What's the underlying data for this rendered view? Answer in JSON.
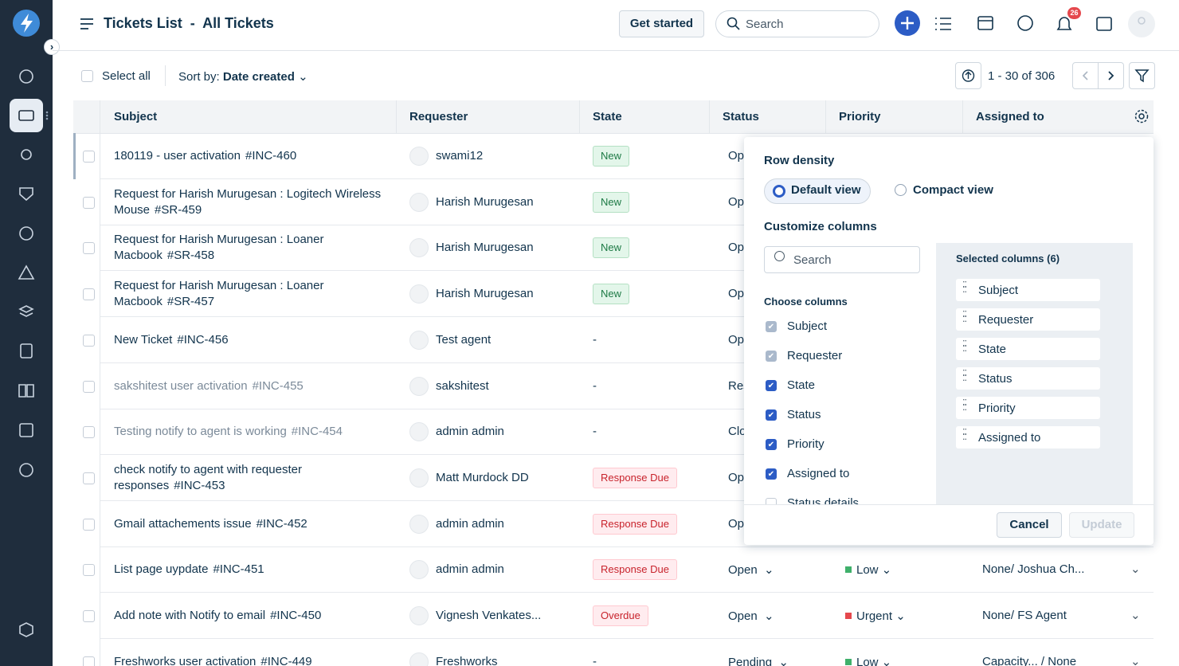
{
  "header": {
    "title": "Tickets List",
    "separator": "-",
    "view": "All Tickets",
    "get_started": "Get started",
    "search_placeholder": "Search",
    "notification_count": 26
  },
  "toolbar": {
    "select_all": "Select all",
    "sort_label": "Sort by:",
    "sort_value": "Date created",
    "pagination": "1 - 30 of 306"
  },
  "table": {
    "columns": [
      "Subject",
      "Requester",
      "State",
      "Status",
      "Priority",
      "Assigned to"
    ],
    "rows": [
      {
        "subject": "180119 - user activation",
        "id": "#INC-460",
        "requester": "swami12",
        "state": "New",
        "state_color": "green",
        "status": "Op"
      },
      {
        "subject": "Request for Harish Murugesan : Logitech Wireless Mouse",
        "id": "#SR-459",
        "requester": "Harish Murugesan",
        "state": "New",
        "state_color": "green",
        "status": "Op"
      },
      {
        "subject": "Request for Harish Murugesan : Loaner Macbook",
        "id": "#SR-458",
        "requester": "Harish Murugesan",
        "state": "New",
        "state_color": "green",
        "status": "Op"
      },
      {
        "subject": "Request for Harish Murugesan : Loaner Macbook",
        "id": "#SR-457",
        "requester": "Harish Murugesan",
        "state": "New",
        "state_color": "green",
        "status": "Op"
      },
      {
        "subject": "New Ticket",
        "id": "#INC-456",
        "requester": "Test agent",
        "state": "-",
        "status": "Op"
      },
      {
        "subject": "sakshitest user activation",
        "id": "#INC-455",
        "requester": "sakshitest",
        "state": "-",
        "status": "Res",
        "muted": true
      },
      {
        "subject": "Testing notify to agent is working",
        "id": "#INC-454",
        "requester": "admin admin",
        "state": "-",
        "status": "Clo",
        "muted": true
      },
      {
        "subject": "check notify to agent with requester responses",
        "id": "#INC-453",
        "requester": "Matt Murdock DD",
        "state": "Response Due",
        "state_color": "red",
        "status": "Op"
      },
      {
        "subject": "Gmail attachements issue",
        "id": "#INC-452",
        "requester": "admin admin",
        "state": "Response Due",
        "state_color": "red",
        "status": "Op"
      },
      {
        "subject": "List page uypdate",
        "id": "#INC-451",
        "requester": "admin admin",
        "state": "Response Due",
        "state_color": "red",
        "status": "Open",
        "priority": "Low",
        "priority_color": "#3fb06b",
        "assigned": "None/ Joshua Ch..."
      },
      {
        "subject": "Add note with Notify to email",
        "id": "#INC-450",
        "requester": "Vignesh Venkates...",
        "state": "Overdue",
        "state_color": "red",
        "status": "Open",
        "priority": "Urgent",
        "priority_color": "#e5484d",
        "assigned": "None/ FS Agent"
      },
      {
        "subject": "Freshworks user activation",
        "id": "#INC-449",
        "requester": "Freshworks",
        "state": "-",
        "status": "Pending",
        "priority": "Low",
        "priority_color": "#3fb06b",
        "assigned": "Capacity... / None"
      }
    ]
  },
  "column_panel": {
    "row_density": "Row density",
    "default_view": "Default view",
    "compact_view": "Compact view",
    "customize": "Customize columns",
    "search_placeholder": "Search",
    "choose": "Choose columns",
    "choices": [
      {
        "label": "Subject",
        "checked": true,
        "locked": true
      },
      {
        "label": "Requester",
        "checked": true,
        "locked": true
      },
      {
        "label": "State",
        "checked": true
      },
      {
        "label": "Status",
        "checked": true
      },
      {
        "label": "Priority",
        "checked": true
      },
      {
        "label": "Assigned to",
        "checked": true
      },
      {
        "label": "Status details",
        "checked": false
      }
    ],
    "selected_title": "Selected columns (6)",
    "selected": [
      "Subject",
      "Requester",
      "State",
      "Status",
      "Priority",
      "Assigned to"
    ],
    "cancel": "Cancel",
    "update": "Update"
  }
}
